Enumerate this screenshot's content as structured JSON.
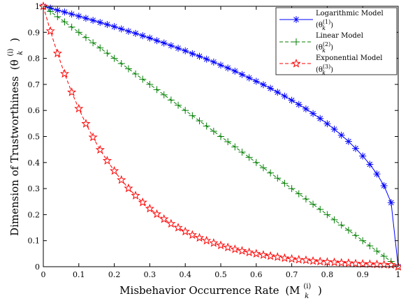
{
  "chart_data": {
    "type": "line",
    "xlabel_main": "Misbehavior Occurrence Rate",
    "xlabel_symbol": "(M",
    "xlabel_sub": "k",
    "xlabel_sup": "(i)",
    "xlabel_close": ")",
    "ylabel_main": "Dimension of Trustworthiness",
    "ylabel_symbol": "(θ",
    "ylabel_sub": "k",
    "ylabel_sup": "(i)",
    "ylabel_close": ")",
    "xlim": [
      0,
      1
    ],
    "ylim": [
      0,
      1
    ],
    "x_ticks": [
      "0",
      "0.1",
      "0.2",
      "0.3",
      "0.4",
      "0.5",
      "0.6",
      "0.7",
      "0.8",
      "0.9",
      "1"
    ],
    "y_ticks": [
      "0",
      "0.1",
      "0.2",
      "0.3",
      "0.4",
      "0.5",
      "0.6",
      "0.7",
      "0.8",
      "0.9",
      "1"
    ],
    "grid": false,
    "legend_position": "top-right",
    "x": [
      0,
      0.02,
      0.04,
      0.06,
      0.08,
      0.1,
      0.12,
      0.14,
      0.16,
      0.18,
      0.2,
      0.22,
      0.24,
      0.26,
      0.28,
      0.3,
      0.32,
      0.34,
      0.36,
      0.38,
      0.4,
      0.42,
      0.44,
      0.46,
      0.48,
      0.5,
      0.52,
      0.54,
      0.56,
      0.58,
      0.6,
      0.62,
      0.64,
      0.66,
      0.68,
      0.7,
      0.72,
      0.74,
      0.76,
      0.78,
      0.8,
      0.82,
      0.84,
      0.86,
      0.88,
      0.9,
      0.92,
      0.94,
      0.96,
      0.98,
      1
    ],
    "series": [
      {
        "name": "Logarithmic Model",
        "label_symbol": "(θ",
        "label_sub": "k",
        "label_sup": "(1)",
        "label_close": ")",
        "color": "#0000ff",
        "marker": "asterisk",
        "line": "solid",
        "values": [
          1.0,
          0.993,
          0.985,
          0.978,
          0.97,
          0.962,
          0.954,
          0.946,
          0.938,
          0.93,
          0.922,
          0.913,
          0.904,
          0.896,
          0.887,
          0.878,
          0.868,
          0.859,
          0.849,
          0.839,
          0.829,
          0.818,
          0.808,
          0.797,
          0.786,
          0.774,
          0.763,
          0.751,
          0.738,
          0.725,
          0.712,
          0.699,
          0.685,
          0.67,
          0.655,
          0.639,
          0.623,
          0.606,
          0.588,
          0.569,
          0.549,
          0.528,
          0.505,
          0.481,
          0.454,
          0.425,
          0.393,
          0.356,
          0.311,
          0.246,
          0.0
        ]
      },
      {
        "name": "Linear Model",
        "label_symbol": "(θ",
        "label_sub": "k",
        "label_sup": "(2)",
        "label_close": ")",
        "color": "#007f00",
        "marker": "plus",
        "line": "dashed",
        "values": [
          1.0,
          0.98,
          0.96,
          0.94,
          0.92,
          0.9,
          0.88,
          0.86,
          0.84,
          0.82,
          0.8,
          0.78,
          0.76,
          0.74,
          0.72,
          0.7,
          0.68,
          0.66,
          0.64,
          0.62,
          0.6,
          0.58,
          0.56,
          0.54,
          0.52,
          0.5,
          0.48,
          0.46,
          0.44,
          0.42,
          0.4,
          0.38,
          0.36,
          0.34,
          0.32,
          0.3,
          0.28,
          0.26,
          0.24,
          0.22,
          0.2,
          0.18,
          0.16,
          0.14,
          0.12,
          0.1,
          0.08,
          0.06,
          0.04,
          0.02,
          0.0
        ]
      },
      {
        "name": "Exponential Model",
        "label_symbol": "(θ",
        "label_sub": "k",
        "label_sup": "(3)",
        "label_close": ")",
        "color": "#ff0000",
        "marker": "star",
        "line": "dashed",
        "values": [
          1.0,
          0.905,
          0.819,
          0.741,
          0.67,
          0.607,
          0.549,
          0.497,
          0.449,
          0.407,
          0.368,
          0.333,
          0.301,
          0.273,
          0.247,
          0.223,
          0.202,
          0.183,
          0.165,
          0.15,
          0.135,
          0.122,
          0.111,
          0.1,
          0.091,
          0.082,
          0.074,
          0.067,
          0.061,
          0.055,
          0.05,
          0.045,
          0.041,
          0.037,
          0.033,
          0.03,
          0.027,
          0.025,
          0.022,
          0.02,
          0.018,
          0.017,
          0.015,
          0.014,
          0.012,
          0.011,
          0.01,
          0.009,
          0.008,
          0.007,
          0.0
        ]
      }
    ]
  }
}
